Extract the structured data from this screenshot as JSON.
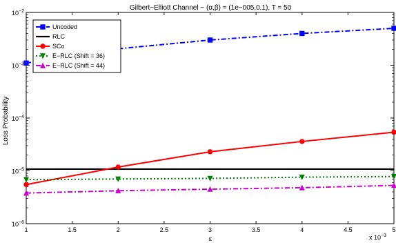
{
  "chart_data": {
    "type": "line",
    "title": "Gilbert−Elliott Channel − (α,β) = (1e−005,0.1), T = 50",
    "xlabel": "ε",
    "ylabel": "Loss Probability",
    "x_multiplier_label": "x 10",
    "x_multiplier_exponent": "−3",
    "xlim": [
      1,
      5
    ],
    "ylim": [
      1e-06,
      0.01
    ],
    "yscale": "log",
    "grid": false,
    "legend_position": "top-left",
    "x_ticks": [
      "1",
      "1.5",
      "2",
      "2.5",
      "3",
      "3.5",
      "4",
      "4.5",
      "5"
    ],
    "y_ticks": [
      {
        "base": "10",
        "exp": "−6"
      },
      {
        "base": "10",
        "exp": "−5"
      },
      {
        "base": "10",
        "exp": "−4"
      },
      {
        "base": "10",
        "exp": "−3"
      },
      {
        "base": "10",
        "exp": "−2"
      }
    ],
    "x": [
      1,
      2,
      3,
      4,
      5
    ],
    "series": [
      {
        "name": "Uncoded",
        "color": "#0000ff",
        "dash": "dashdot",
        "marker": "square",
        "values": [
          0.0011,
          0.00205,
          0.003,
          0.004,
          0.005
        ]
      },
      {
        "name": "RLC",
        "color": "#000000",
        "dash": "solid",
        "marker": "none",
        "values": [
          1.08e-05,
          1.08e-05,
          1.08e-05,
          1.08e-05,
          1.08e-05
        ]
      },
      {
        "name": "SCo",
        "color": "#ff0000",
        "dash": "solid",
        "marker": "circle",
        "values": [
          5.5e-06,
          1.18e-05,
          2.3e-05,
          3.6e-05,
          5.4e-05
        ]
      },
      {
        "name": "E−RLC (Shift = 36)",
        "color": "#008000",
        "dash": "dotted",
        "marker": "triangle-down",
        "values": [
          6.8e-06,
          7e-06,
          7.2e-06,
          7.6e-06,
          7.8e-06
        ]
      },
      {
        "name": "E−RLC (Shift = 44)",
        "color": "#cc00cc",
        "dash": "dashdot",
        "marker": "triangle-up",
        "values": [
          3.8e-06,
          4.2e-06,
          4.5e-06,
          4.8e-06,
          5.3e-06
        ]
      }
    ]
  }
}
